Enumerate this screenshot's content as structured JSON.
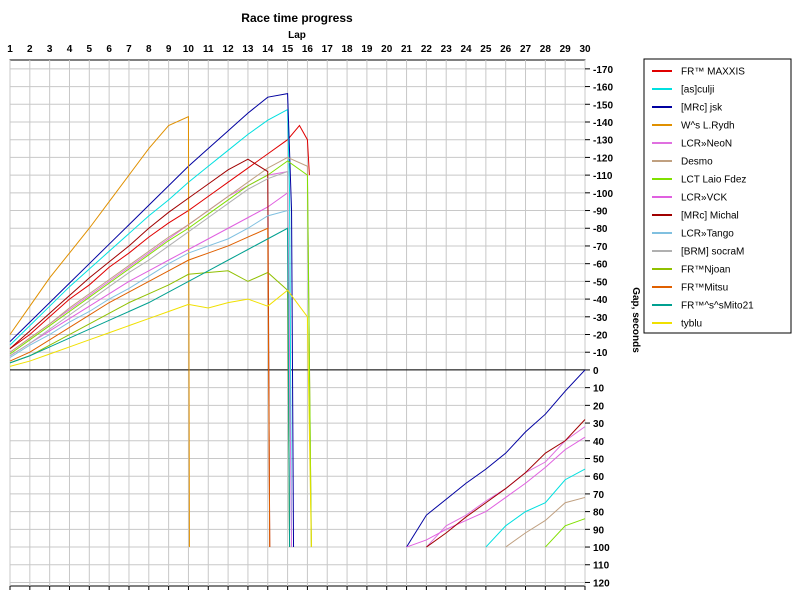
{
  "chart_data": {
    "type": "line",
    "title": "Race time progress",
    "xlabel": "Lap",
    "ylabel": "Gap, seconds",
    "x_ticks": [
      1,
      2,
      3,
      4,
      5,
      6,
      7,
      8,
      9,
      10,
      11,
      12,
      13,
      14,
      15,
      16,
      17,
      18,
      19,
      20,
      21,
      22,
      23,
      24,
      25,
      26,
      27,
      28,
      29,
      30
    ],
    "xlim": [
      1,
      30
    ],
    "ylim": [
      -170,
      120
    ],
    "y_axis_inverted": true,
    "y_tick_step": 10,
    "y_tick_labels": [
      "-170",
      "-160",
      "-150",
      "-140",
      "-130",
      "-120",
      "-110",
      "-100",
      "-90",
      "-80",
      "-70",
      "-60",
      "-50",
      "-40",
      "-30",
      "-20",
      "-10",
      "0",
      "10",
      "20",
      "30",
      "40",
      "50",
      "60",
      "70",
      "80",
      "90",
      "100",
      "110",
      "120"
    ],
    "grid": true,
    "legend_position": "right",
    "series": [
      {
        "name": "FR™ MAXXIS",
        "color": "#e00000",
        "x": [
          1,
          2,
          3,
          4,
          5,
          6,
          7,
          8,
          9,
          10,
          11,
          12,
          13,
          14,
          15,
          15.6,
          16,
          16.1
        ],
        "y": [
          -12,
          -20,
          -30,
          -40,
          -48,
          -58,
          -66,
          -75,
          -83,
          -90,
          -98,
          -106,
          -114,
          -122,
          -130,
          -138,
          -130,
          -110
        ]
      },
      {
        "name": "[as]culji",
        "color": "#00e0e0",
        "x": [
          1,
          2,
          3,
          4,
          5,
          6,
          7,
          8,
          9,
          10,
          11,
          12,
          13,
          14,
          15,
          15.1,
          15.2
        ],
        "y": [
          -14,
          -25,
          -36,
          -47,
          -57,
          -67,
          -77,
          -87,
          -96,
          -106,
          -115,
          -124,
          -133,
          -141,
          -147,
          -100,
          100
        ],
        "x2": [
          25,
          26,
          27,
          28,
          29,
          30
        ],
        "y2": [
          100,
          88,
          80,
          75,
          62,
          56
        ]
      },
      {
        "name": "[MRc] jsk",
        "color": "#0000a0",
        "x": [
          1,
          2,
          3,
          4,
          5,
          6,
          7,
          8,
          9,
          10,
          11,
          12,
          13,
          14,
          15,
          15.2,
          15.3
        ],
        "y": [
          -16,
          -27,
          -38,
          -49,
          -60,
          -71,
          -82,
          -93,
          -104,
          -115,
          -125,
          -135,
          -145,
          -154,
          -156,
          -90,
          100
        ],
        "x2": [
          21,
          22,
          23,
          24,
          25,
          26,
          27,
          28,
          29,
          30
        ],
        "y2": [
          100,
          82,
          73,
          64,
          56,
          47,
          35,
          25,
          12,
          0
        ]
      },
      {
        "name": "W^s L.Rydh",
        "color": "#e09000",
        "x": [
          1,
          2,
          3,
          4,
          5,
          6,
          7,
          8,
          9,
          10,
          10.05
        ],
        "y": [
          -20,
          -36,
          -52,
          -66,
          -80,
          -95,
          -110,
          -125,
          -138,
          -143,
          100
        ]
      },
      {
        "name": "LCR»NeoN",
        "color": "#e070e0",
        "x": [
          1,
          2,
          3,
          4,
          5,
          6,
          7,
          8,
          9,
          10,
          11,
          12,
          13,
          14,
          15,
          15.2
        ],
        "y": [
          -10,
          -18,
          -26,
          -34,
          -42,
          -50,
          -58,
          -66,
          -74,
          -82,
          -90,
          -98,
          -104,
          -110,
          -112,
          100
        ],
        "x2": [
          22,
          23,
          24,
          25,
          26,
          27,
          28,
          29,
          30
        ],
        "y2": [
          100,
          88,
          82,
          74,
          67,
          58,
          52,
          40,
          32
        ]
      },
      {
        "name": "Desmo",
        "color": "#c0a080",
        "x": [
          1,
          2,
          3,
          4,
          5,
          6,
          7,
          8,
          9,
          10,
          11,
          12,
          13,
          14,
          15,
          16,
          16.2
        ],
        "y": [
          -10,
          -18,
          -26,
          -35,
          -43,
          -51,
          -59,
          -67,
          -75,
          -82,
          -90,
          -98,
          -106,
          -114,
          -120,
          -115,
          100
        ],
        "x2": [
          26,
          27,
          28,
          29,
          30
        ],
        "y2": [
          100,
          92,
          85,
          75,
          72
        ]
      },
      {
        "name": "LCT Laio Fdez",
        "color": "#80e000",
        "x": [
          1,
          2,
          3,
          4,
          5,
          6,
          7,
          8,
          9,
          10,
          11,
          12,
          13,
          14,
          15,
          16,
          16.2
        ],
        "y": [
          -9,
          -17,
          -25,
          -33,
          -41,
          -49,
          -57,
          -65,
          -73,
          -80,
          -88,
          -96,
          -104,
          -110,
          -118,
          -110,
          100
        ],
        "x2": [
          28,
          29,
          30
        ],
        "y2": [
          100,
          88,
          84
        ]
      },
      {
        "name": "LCR»VCK",
        "color": "#e060e0",
        "x": [
          1,
          2,
          3,
          4,
          5,
          6,
          7,
          8,
          9,
          10,
          11,
          12,
          13,
          14,
          15,
          15.1
        ],
        "y": [
          -8,
          -15,
          -22,
          -29,
          -36,
          -43,
          -50,
          -56,
          -62,
          -68,
          -74,
          -80,
          -86,
          -92,
          -100,
          100
        ],
        "x2": [
          21,
          22,
          23,
          24,
          25,
          26,
          27,
          28,
          29,
          30
        ],
        "y2": [
          100,
          96,
          90,
          85,
          80,
          72,
          64,
          55,
          45,
          38
        ]
      },
      {
        "name": "[MRc] Michal",
        "color": "#a00000",
        "x": [
          1,
          2,
          3,
          4,
          5,
          6,
          7,
          8,
          9,
          10,
          11,
          12,
          13,
          14,
          14.1
        ],
        "y": [
          -12,
          -22,
          -32,
          -42,
          -52,
          -61,
          -70,
          -80,
          -89,
          -97,
          -105,
          -113,
          -119,
          -112,
          100
        ],
        "x2": [
          22,
          23,
          24,
          25,
          26,
          27,
          28,
          29,
          30
        ],
        "y2": [
          100,
          92,
          83,
          75,
          67,
          58,
          47,
          40,
          28
        ]
      },
      {
        "name": "LCR»Tango",
        "color": "#80c0e0",
        "x": [
          1,
          2,
          3,
          4,
          5,
          6,
          7,
          8,
          9,
          10,
          11,
          12,
          13,
          14,
          15,
          15.1
        ],
        "y": [
          -7,
          -14,
          -20,
          -27,
          -33,
          -40,
          -46,
          -53,
          -60,
          -66,
          -70,
          -74,
          -80,
          -87,
          -90,
          100
        ]
      },
      {
        "name": "[BRM] socraM",
        "color": "#b0b0b0",
        "x": [
          1,
          2,
          3,
          4,
          5,
          6,
          7,
          8,
          9,
          10,
          11,
          12,
          13,
          14,
          15,
          15.1
        ],
        "y": [
          -8,
          -15,
          -23,
          -31,
          -39,
          -47,
          -55,
          -62,
          -70,
          -78,
          -86,
          -94,
          -102,
          -108,
          -112,
          100
        ]
      },
      {
        "name": "FR™Njoan",
        "color": "#90c000",
        "x": [
          1,
          2,
          3,
          4,
          5,
          6,
          7,
          8,
          9,
          10,
          11,
          12,
          13,
          14,
          15,
          15.1
        ],
        "y": [
          -4,
          -8,
          -14,
          -20,
          -26,
          -32,
          -38,
          -43,
          -48,
          -54,
          -55,
          -56,
          -50,
          -55,
          -45,
          100
        ]
      },
      {
        "name": "FR™Mitsu",
        "color": "#e06000",
        "x": [
          1,
          2,
          3,
          4,
          5,
          6,
          7,
          8,
          9,
          10,
          11,
          12,
          13,
          14,
          14.1
        ],
        "y": [
          -5,
          -10,
          -17,
          -24,
          -31,
          -38,
          -44,
          -50,
          -56,
          -62,
          -66,
          -70,
          -75,
          -80,
          100
        ]
      },
      {
        "name": "FR™^s^sMito21",
        "color": "#00a090",
        "x": [
          1,
          2,
          3,
          4,
          5,
          6,
          7,
          8,
          9,
          10,
          11,
          12,
          13,
          14,
          15,
          15.1
        ],
        "y": [
          -4,
          -8,
          -13,
          -18,
          -23,
          -28,
          -33,
          -38,
          -44,
          -50,
          -56,
          -62,
          -68,
          -74,
          -80,
          100
        ]
      },
      {
        "name": "tyblu",
        "color": "#f0e000",
        "x": [
          1,
          2,
          3,
          4,
          5,
          6,
          7,
          8,
          9,
          10,
          11,
          12,
          13,
          14,
          15,
          16,
          16.2
        ],
        "y": [
          -2,
          -5,
          -9,
          -13,
          -17,
          -21,
          -25,
          -29,
          -33,
          -37,
          -35,
          -38,
          -40,
          -36,
          -45,
          -30,
          100
        ]
      }
    ]
  }
}
